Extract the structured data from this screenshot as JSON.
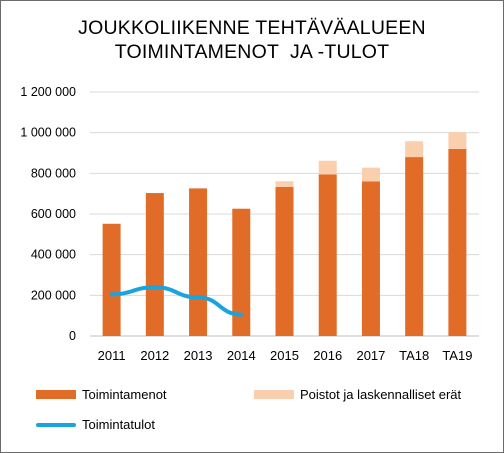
{
  "chart_data": {
    "type": "bar",
    "title_lines": [
      "JOUKKOLIIKENNE TEHTÄVÄALUEEN",
      "TOIMINTAMENOT  JA -TULOT"
    ],
    "categories": [
      "2011",
      "2012",
      "2013",
      "2014",
      "2015",
      "2016",
      "2017",
      "TA18",
      "TA19"
    ],
    "y_ticks": [
      "0",
      "200 000",
      "400 000",
      "600 000",
      "800 000",
      "1 000 000",
      "1 200 000"
    ],
    "ylim": [
      0,
      1200000
    ],
    "grid": true,
    "stacked": true,
    "series": [
      {
        "name": "Toimintamenot",
        "kind": "bar",
        "color": "#e06c28",
        "values": [
          552000,
          703000,
          726000,
          626000,
          733000,
          795000,
          760000,
          880000,
          920000
        ]
      },
      {
        "name": "Poistot ja laskennalliset erät",
        "kind": "bar",
        "color": "#f9cfae",
        "values": [
          0,
          0,
          0,
          0,
          28000,
          67000,
          68000,
          78000,
          82000
        ]
      },
      {
        "name": "Toimintatulot",
        "kind": "line",
        "color": "#1aa3dc",
        "values": [
          205000,
          240000,
          190000,
          105000,
          null,
          null,
          null,
          null,
          null
        ]
      }
    ],
    "legend_position": "bottom"
  }
}
